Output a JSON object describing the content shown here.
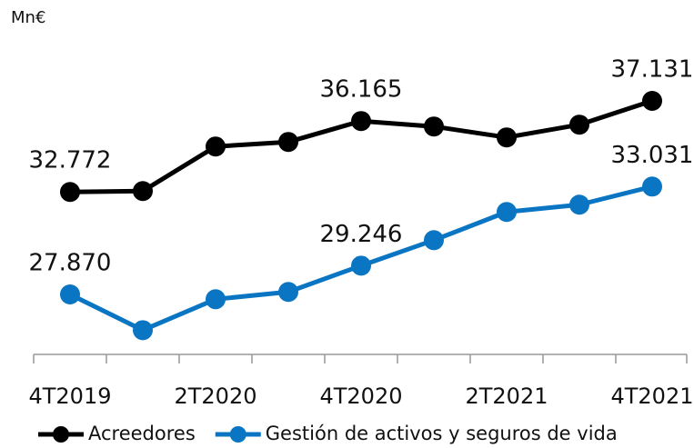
{
  "chart_data": {
    "type": "line",
    "unit_label": "Mn€",
    "categories": [
      "4T2019",
      null,
      "2T2020",
      null,
      "4T2020",
      null,
      "2T2021",
      null,
      "4T2021"
    ],
    "series": [
      {
        "name": "Acreedores",
        "color": "#000000",
        "values": [
          32772,
          32815,
          34947,
          35165,
          36165,
          35904,
          35382,
          35991,
          37131
        ],
        "value_labels": [
          "32.772",
          null,
          null,
          null,
          "36.165",
          null,
          null,
          null,
          "37.131"
        ]
      },
      {
        "name": "Gestión de activos y seguros de vida",
        "color": "#0a75c2",
        "values": [
          27870,
          26160,
          27640,
          27990,
          29246,
          30465,
          31815,
          32163,
          33031
        ],
        "value_labels": [
          "27.870",
          null,
          null,
          null,
          "29.246",
          null,
          null,
          null,
          "33.031"
        ]
      }
    ],
    "ylim": [
      25000,
      40000
    ],
    "legend": "bottom"
  }
}
